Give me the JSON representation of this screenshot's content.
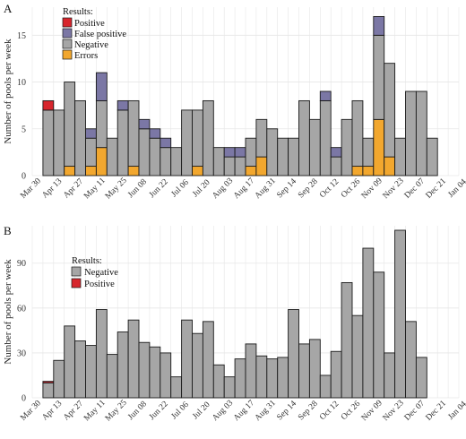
{
  "figure": {
    "colors": {
      "positive": "#d7262d",
      "false_positive": "#7b77a5",
      "negative": "#a6a6a6",
      "errors": "#f2a72e",
      "grid": "#e6e6e6",
      "bar_stroke": "#1a1a1a"
    }
  },
  "chart_data": [
    {
      "type": "bar",
      "stacked": true,
      "panel_label": "A",
      "ylabel": "Number of pools per week",
      "xlabel": "",
      "ylim": [
        0,
        18
      ],
      "yticks": [
        0,
        5,
        10,
        15
      ],
      "grid": true,
      "xlim_weeks": [
        0,
        40
      ],
      "xtick_labels": [
        "Mar 30",
        "Apr 13",
        "Apr 27",
        "May 11",
        "May 25",
        "Jun 08",
        "Jun 22",
        "Jul 06",
        "Jul 20",
        "Aug 03",
        "Aug 17",
        "Aug 31",
        "Sep 14",
        "Sep 28",
        "Oct 12",
        "Oct 26",
        "Nov 09",
        "Nov 23",
        "Dec 07",
        "Dec 21",
        "Jan 04"
      ],
      "week_starts": [
        "Apr 06",
        "Apr 13",
        "Apr 20",
        "Apr 27",
        "May 04",
        "May 11",
        "May 18",
        "May 25",
        "Jun 01",
        "Jun 08",
        "Jun 15",
        "Jun 22",
        "Jun 29",
        "Jul 06",
        "Jul 13",
        "Jul 20",
        "Jul 27",
        "Aug 03",
        "Aug 10",
        "Aug 17",
        "Aug 24",
        "Aug 31",
        "Sep 07",
        "Sep 14",
        "Sep 21",
        "Sep 28",
        "Oct 05",
        "Oct 12",
        "Oct 19",
        "Oct 26",
        "Nov 02",
        "Nov 09",
        "Nov 16",
        "Nov 23",
        "Nov 30",
        "Dec 07",
        "Dec 14",
        "Dec 21"
      ],
      "legend": {
        "title": "Results:",
        "position": "top-left",
        "entries": [
          "Positive",
          "False positive",
          "Negative",
          "Errors"
        ]
      },
      "series": [
        {
          "name": "Errors",
          "values": [
            0,
            0,
            1,
            0,
            1,
            3,
            0,
            0,
            1,
            0,
            0,
            0,
            0,
            0,
            1,
            0,
            0,
            0,
            0,
            1,
            2,
            0,
            0,
            0,
            0,
            0,
            0,
            0,
            0,
            1,
            1,
            6,
            2,
            0,
            0,
            0,
            0,
            0
          ]
        },
        {
          "name": "Negative",
          "values": [
            7,
            7,
            9,
            8,
            3,
            5,
            4,
            7,
            7,
            5,
            4,
            3,
            3,
            7,
            6,
            8,
            3,
            2,
            2,
            3,
            4,
            5,
            4,
            4,
            8,
            6,
            8,
            2,
            6,
            7,
            3,
            9,
            10,
            4,
            9,
            9,
            4,
            0
          ]
        },
        {
          "name": "False positive",
          "values": [
            0,
            0,
            0,
            0,
            1,
            3,
            0,
            1,
            0,
            1,
            1,
            1,
            0,
            0,
            0,
            0,
            0,
            1,
            1,
            0,
            0,
            0,
            0,
            0,
            0,
            0,
            1,
            1,
            0,
            0,
            0,
            2,
            0,
            0,
            0,
            0,
            0,
            0
          ]
        },
        {
          "name": "Positive",
          "values": [
            1,
            0,
            0,
            0,
            0,
            0,
            0,
            0,
            0,
            0,
            0,
            0,
            0,
            0,
            0,
            0,
            0,
            0,
            0,
            0,
            0,
            0,
            0,
            0,
            0,
            0,
            0,
            0,
            0,
            0,
            0,
            0,
            0,
            0,
            0,
            0,
            0,
            0
          ]
        }
      ]
    },
    {
      "type": "bar",
      "stacked": true,
      "panel_label": "B",
      "ylabel": "Number of pools per week",
      "xlabel": "",
      "ylim": [
        0,
        115
      ],
      "yticks": [
        0,
        30,
        60,
        90
      ],
      "grid": true,
      "xlim_weeks": [
        0,
        40
      ],
      "xtick_labels": [
        "Mar 30",
        "Apr 13",
        "Apr 27",
        "May 11",
        "May 25",
        "Jun 08",
        "Jun 22",
        "Jul 06",
        "Jul 20",
        "Aug 03",
        "Aug 17",
        "Aug 31",
        "Sep 14",
        "Sep 28",
        "Oct 12",
        "Oct 26",
        "Nov 09",
        "Nov 23",
        "Dec 07",
        "Dec 21",
        "Jan 04"
      ],
      "week_starts": [
        "Apr 06",
        "Apr 13",
        "Apr 20",
        "Apr 27",
        "May 04",
        "May 11",
        "May 18",
        "May 25",
        "Jun 01",
        "Jun 08",
        "Jun 15",
        "Jun 22",
        "Jun 29",
        "Jul 06",
        "Jul 13",
        "Jul 20",
        "Jul 27",
        "Aug 03",
        "Aug 10",
        "Aug 17",
        "Aug 24",
        "Aug 31",
        "Sep 07",
        "Sep 14",
        "Sep 21",
        "Sep 28",
        "Oct 05",
        "Oct 12",
        "Oct 19",
        "Oct 26",
        "Nov 02",
        "Nov 09",
        "Nov 16",
        "Nov 23",
        "Nov 30",
        "Dec 07",
        "Dec 14",
        "Dec 21"
      ],
      "legend": {
        "title": "Results:",
        "position": "top-left",
        "entries": [
          "Negative",
          "Positive"
        ]
      },
      "series": [
        {
          "name": "Negative",
          "values": [
            10,
            25,
            48,
            38,
            35,
            59,
            29,
            44,
            52,
            37,
            34,
            30,
            14,
            52,
            43,
            51,
            22,
            14,
            26,
            36,
            28,
            26,
            27,
            59,
            36,
            39,
            15,
            31,
            77,
            55,
            100,
            84,
            30,
            112,
            51,
            27,
            0,
            0
          ]
        },
        {
          "name": "Positive",
          "values": [
            1,
            0,
            0,
            0,
            0,
            0,
            0,
            0,
            0,
            0,
            0,
            0,
            0,
            0,
            0,
            0,
            0,
            0,
            0,
            0,
            0,
            0,
            0,
            0,
            0,
            0,
            0,
            0,
            0,
            0,
            0,
            0,
            0,
            0,
            0,
            0,
            0,
            0
          ]
        }
      ]
    }
  ]
}
